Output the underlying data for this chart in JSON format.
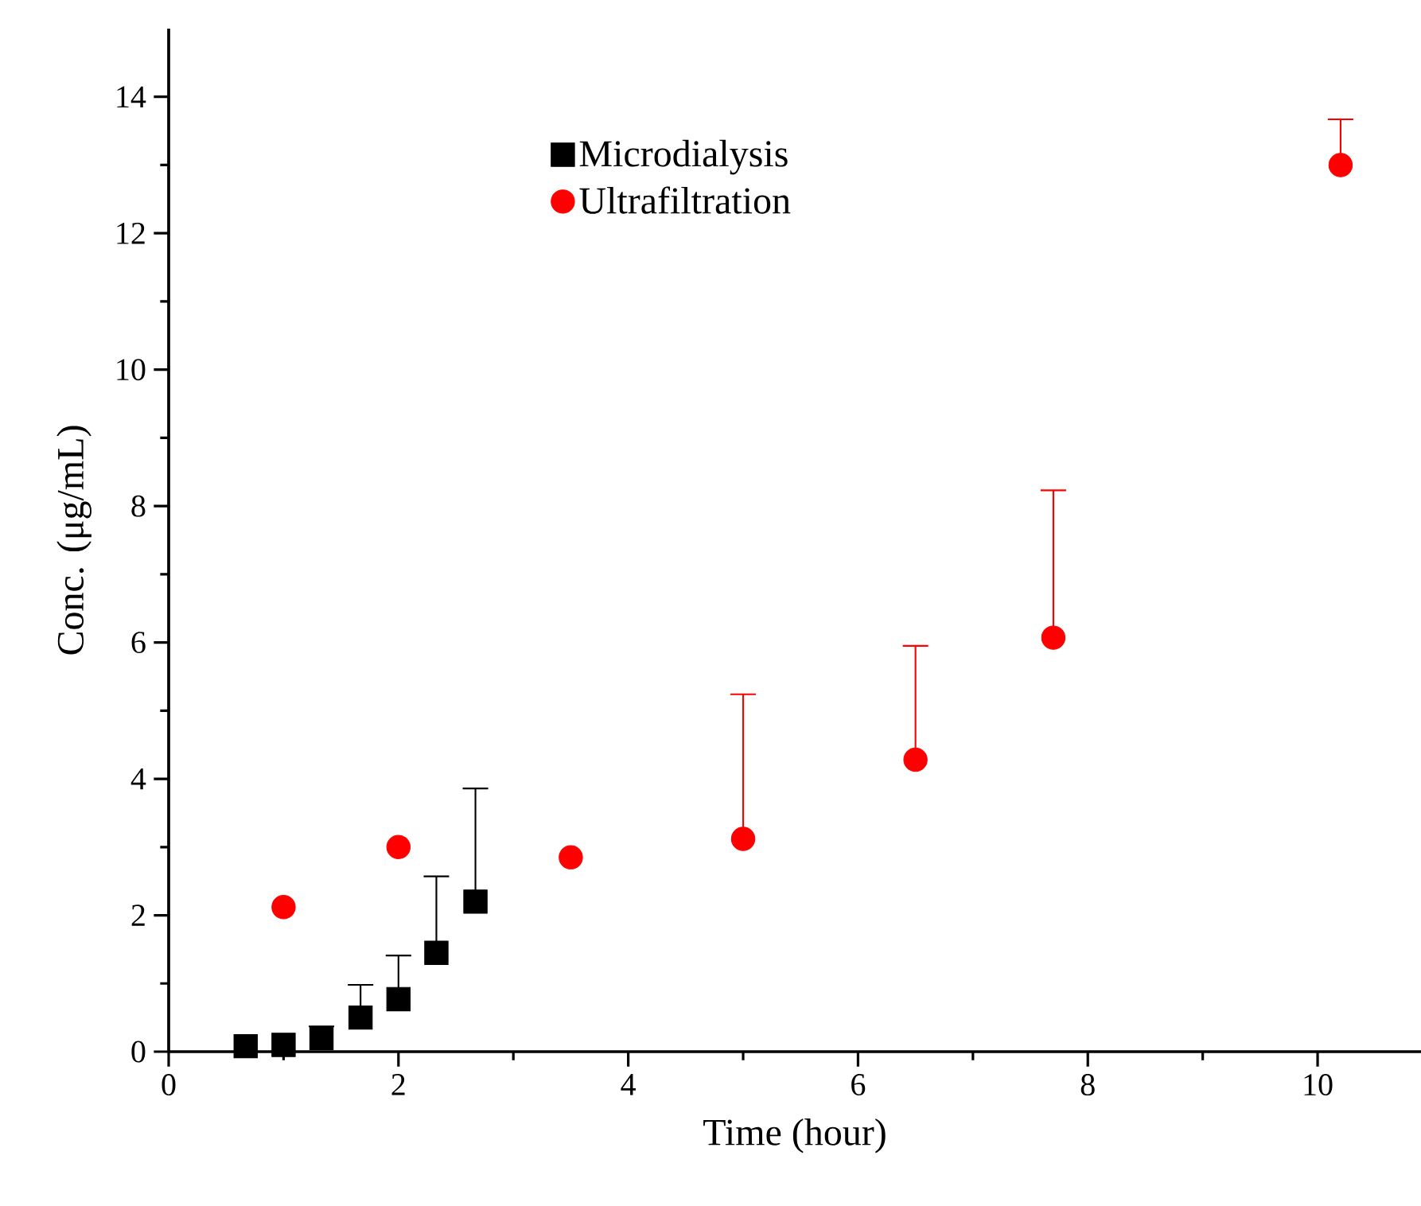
{
  "chart_data": {
    "type": "scatter",
    "xlabel": "Time (hour)",
    "ylabel": "Conc. (μg/mL)",
    "xlim": [
      0,
      10.9
    ],
    "ylim": [
      0,
      15
    ],
    "xticks": [
      0,
      {
        "value": 1,
        "label": null
      },
      2,
      {
        "value": 3,
        "label": null
      },
      4,
      {
        "value": 5,
        "label": null
      },
      6,
      {
        "value": 7,
        "label": null
      },
      8,
      {
        "value": 9,
        "label": null
      },
      10
    ],
    "yticks": [
      0,
      {
        "value": 1,
        "label": null
      },
      2,
      {
        "value": 3,
        "label": null
      },
      4,
      {
        "value": 5,
        "label": null
      },
      6,
      {
        "value": 7,
        "label": null
      },
      8,
      {
        "value": 9,
        "label": null
      },
      10,
      {
        "value": 11,
        "label": null
      },
      12,
      {
        "value": 13,
        "label": null
      },
      14
    ],
    "legend": "top",
    "grid": false,
    "series": [
      {
        "name": "Microdialysis",
        "color": "#000000",
        "marker": "square",
        "x": [
          0.67,
          1,
          1.33,
          1.67,
          2,
          2.33,
          2.67
        ],
        "values": [
          0.08,
          0.1,
          0.2,
          0.5,
          0.77,
          1.45,
          2.2
        ],
        "errors": [
          null,
          null,
          [
            0.2,
            0.37
          ],
          [
            0.5,
            0.98
          ],
          [
            0.77,
            1.41
          ],
          [
            1.45,
            2.57
          ],
          [
            2.2,
            3.86
          ]
        ]
      },
      {
        "name": "Ultrafiltration",
        "color": "#ff0000",
        "marker": "circle",
        "x": [
          1,
          2,
          3.5,
          5,
          6.5,
          7.7,
          10.2
        ],
        "values": [
          2.12,
          3.0,
          2.85,
          3.12,
          4.28,
          6.07,
          13.0
        ],
        "errors": [
          null,
          null,
          null,
          [
            3.12,
            5.24
          ],
          [
            4.28,
            5.95
          ],
          [
            6.07,
            8.23
          ],
          [
            13.0,
            13.67
          ]
        ]
      }
    ]
  }
}
